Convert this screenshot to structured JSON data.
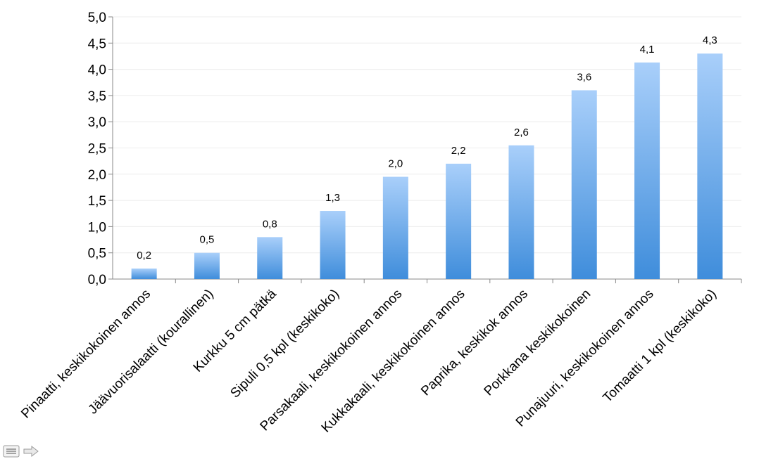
{
  "chart_data": {
    "type": "bar",
    "categories": [
      "Pinaatti, keskikokoinen annos",
      "Jäävuorisalaatti (kourallinen)",
      "Kurkku 5 cm pätkä",
      "Sipuli 0,5 kpl (keskikoko)",
      "Parsakaali, keskikokoinen annos",
      "Kukkakaali, keskikokoinen annos",
      "Paprika, keskikok annos",
      "Porkkana keskikokoinen",
      "Punajuuri, keskikokoinen annos",
      "Tomaatti 1 kpl (keskikoko)"
    ],
    "values": [
      0.2,
      0.5,
      0.8,
      1.3,
      1.95,
      2.2,
      2.55,
      3.6,
      4.13,
      4.3
    ],
    "data_labels": [
      "0,2",
      "0,5",
      "0,8",
      "1,3",
      "2,0",
      "2,2",
      "2,6",
      "3,6",
      "4,1",
      "4,3"
    ],
    "yticks": [
      0.0,
      0.5,
      1.0,
      1.5,
      2.0,
      2.5,
      3.0,
      3.5,
      4.0,
      4.5,
      5.0
    ],
    "ytick_labels": [
      "0,0",
      "0,5",
      "1,0",
      "1,5",
      "2,0",
      "2,5",
      "3,0",
      "3,5",
      "4,0",
      "4,5",
      "5,0"
    ],
    "ylim": [
      0,
      5
    ],
    "title": "",
    "xlabel": "",
    "ylabel": "",
    "grid": true,
    "bar_color_top": "#a9cffa",
    "bar_color_bottom": "#3f8ddb"
  },
  "navigation": {
    "menu_icon": "menu-lines-icon",
    "next_icon": "arrow-right-icon"
  }
}
